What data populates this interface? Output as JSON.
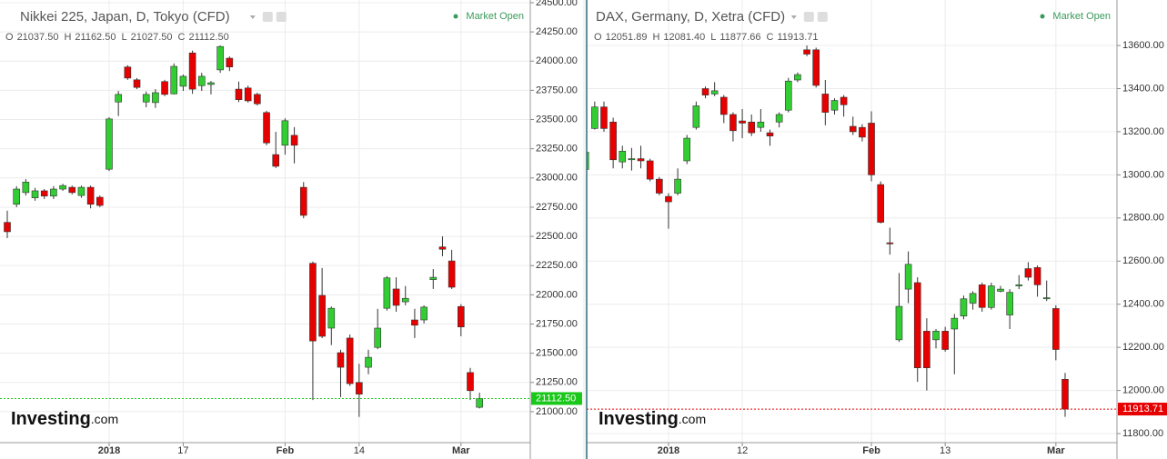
{
  "chart_data": [
    {
      "type": "candlestick",
      "title": "Nikkei 225, Japan, D, Tokyo (CFD)",
      "status": "Market Open",
      "header": {
        "labels": [
          "O",
          "H",
          "L",
          "C"
        ],
        "values": [
          21037.5,
          21162.5,
          21027.5,
          21112.5
        ],
        "value_labels": [
          "21037.50",
          "21162.50",
          "21027.50",
          "21112.50"
        ]
      },
      "x": [
        null,
        null,
        null,
        null,
        null,
        null,
        null,
        null,
        null,
        null,
        null,
        "2018",
        null,
        null,
        null,
        null,
        null,
        null,
        null,
        "17",
        null,
        null,
        null,
        null,
        null,
        null,
        null,
        null,
        null,
        null,
        "Feb",
        null,
        null,
        null,
        null,
        null,
        null,
        null,
        "14",
        null,
        null,
        null,
        null,
        null,
        null,
        null,
        null,
        null,
        null,
        "Mar",
        null,
        null
      ],
      "open": [
        22620,
        22775,
        22875,
        22830,
        22890,
        22845,
        22905,
        22920,
        22850,
        22920,
        22835,
        23075,
        23650,
        23950,
        23840,
        23650,
        23645,
        23825,
        23720,
        23785,
        24070,
        23790,
        23800,
        23925,
        24025,
        23760,
        23770,
        23715,
        23560,
        23200,
        23280,
        23365,
        22920,
        22270,
        21995,
        21715,
        21505,
        21630,
        21250,
        21380,
        21550,
        21885,
        22050,
        21940,
        21785,
        21785,
        22130,
        22410,
        22290,
        21900,
        21335,
        21037.5
      ],
      "high": [
        22720,
        22930,
        22990,
        22915,
        22905,
        22930,
        22950,
        22935,
        22935,
        22935,
        22850,
        23520,
        23745,
        23965,
        23855,
        23740,
        23760,
        23840,
        23980,
        23885,
        24090,
        23900,
        23830,
        24135,
        24040,
        23825,
        23790,
        23730,
        23575,
        23395,
        23510,
        23435,
        22965,
        22285,
        22230,
        21900,
        21530,
        21660,
        21410,
        21530,
        21880,
        22160,
        22150,
        22075,
        21880,
        21910,
        22220,
        22500,
        22385,
        21920,
        21375,
        21162.5
      ],
      "low": [
        22485,
        22750,
        22850,
        22805,
        22820,
        22820,
        22890,
        22860,
        22830,
        22740,
        22750,
        23060,
        23530,
        23840,
        23760,
        23605,
        23600,
        23700,
        23715,
        23745,
        23720,
        23745,
        23715,
        23900,
        23915,
        23650,
        23645,
        23620,
        23280,
        23085,
        23200,
        23125,
        22655,
        21100,
        21630,
        21570,
        21125,
        21220,
        20955,
        21320,
        21535,
        21865,
        21855,
        21910,
        21630,
        21755,
        22050,
        22330,
        22050,
        21645,
        21100,
        21027.5
      ],
      "close": [
        22540,
        22905,
        22965,
        22890,
        22845,
        22905,
        22935,
        22875,
        22920,
        22775,
        22765,
        23505,
        23715,
        23855,
        23775,
        23715,
        23730,
        23715,
        23955,
        23870,
        23760,
        23870,
        23815,
        24125,
        23950,
        23670,
        23660,
        23635,
        23300,
        23100,
        23490,
        23280,
        22680,
        21605,
        21645,
        21885,
        21380,
        21240,
        21150,
        21465,
        21715,
        22145,
        21910,
        21970,
        21740,
        21895,
        22150,
        22390,
        22065,
        21725,
        21180,
        21112.5
      ],
      "up_color": "#32cd32",
      "down_color": "#e60000",
      "last_color": "#19c819",
      "ylim": [
        20735,
        24523
      ],
      "yticks": [
        {
          "value": 21000,
          "label": "21000.00"
        },
        {
          "value": 21250,
          "label": "21250.00"
        },
        {
          "value": 21500,
          "label": "21500.00"
        },
        {
          "value": 21750,
          "label": "21750.00"
        },
        {
          "value": 22000,
          "label": "22000.00"
        },
        {
          "value": 22250,
          "label": "22250.00"
        },
        {
          "value": 22500,
          "label": "22500.00"
        },
        {
          "value": 22750,
          "label": "22750.00"
        },
        {
          "value": 23000,
          "label": "23000.00"
        },
        {
          "value": 23250,
          "label": "23250.00"
        },
        {
          "value": 23500,
          "label": "23500.00"
        },
        {
          "value": 23750,
          "label": "23750.00"
        },
        {
          "value": 24000,
          "label": "24000.00"
        },
        {
          "value": 24250,
          "label": "24250.00"
        },
        {
          "value": 24500,
          "label": "24500.00"
        }
      ],
      "last_price": {
        "value": 21112.5,
        "label": "21112.50"
      },
      "watermark": [
        "Investing",
        ".com"
      ],
      "grid": true
    },
    {
      "type": "candlestick",
      "title": "DAX, Germany, D, Xetra (CFD)",
      "status": "Market Open",
      "header": {
        "labels": [
          "O",
          "H",
          "L",
          "C"
        ],
        "values": [
          12051.89,
          12081.4,
          11877.66,
          11913.71
        ],
        "value_labels": [
          "12051.89",
          "12081.40",
          "11877.66",
          "11913.71"
        ]
      },
      "x": [
        null,
        null,
        null,
        null,
        null,
        null,
        null,
        null,
        null,
        "2018",
        null,
        null,
        null,
        null,
        null,
        null,
        null,
        "12",
        null,
        null,
        null,
        null,
        null,
        null,
        null,
        null,
        null,
        null,
        null,
        null,
        null,
        "Feb",
        null,
        null,
        null,
        null,
        null,
        null,
        null,
        "13",
        null,
        null,
        null,
        null,
        null,
        null,
        null,
        null,
        null,
        null,
        null,
        "Mar",
        null
      ],
      "open": [
        13025,
        13215,
        13315,
        13245,
        13060,
        13070,
        13075,
        13065,
        12980,
        12900,
        12915,
        13065,
        13220,
        13400,
        13375,
        13360,
        13280,
        13250,
        13245,
        13220,
        13195,
        13245,
        13300,
        13440,
        13580,
        13580,
        13375,
        13300,
        13360,
        13225,
        13220,
        13240,
        12955,
        12685,
        12235,
        12470,
        12500,
        12275,
        12235,
        12275,
        12285,
        12345,
        12405,
        12490,
        12385,
        12460,
        12350,
        12485,
        12565,
        12570,
        12425,
        12380,
        12051.89
      ],
      "high": [
        13115,
        13340,
        13340,
        13265,
        13135,
        13125,
        13135,
        13075,
        12990,
        12915,
        13030,
        13185,
        13340,
        13410,
        13430,
        13370,
        13290,
        13305,
        13280,
        13305,
        13210,
        13290,
        13450,
        13475,
        13600,
        13590,
        13440,
        13355,
        13370,
        13270,
        13235,
        13295,
        12970,
        12755,
        12545,
        12645,
        12525,
        12335,
        12285,
        12295,
        12355,
        12440,
        12460,
        12500,
        12500,
        12485,
        12470,
        12535,
        12595,
        12580,
        12510,
        12395,
        12081.4
      ],
      "low": [
        13020,
        13210,
        13200,
        13030,
        13030,
        13020,
        13030,
        12970,
        12905,
        12750,
        12905,
        13050,
        13210,
        13355,
        13365,
        13240,
        13155,
        13170,
        13180,
        13200,
        13135,
        13220,
        13290,
        13430,
        13550,
        13405,
        13230,
        13280,
        13270,
        13185,
        13155,
        12970,
        12775,
        12630,
        12225,
        12405,
        12040,
        12000,
        12195,
        12180,
        12075,
        12330,
        12375,
        12365,
        12375,
        12455,
        12285,
        12470,
        12510,
        12435,
        12415,
        12140,
        11877.66
      ],
      "close": [
        13105,
        13315,
        13215,
        13070,
        13110,
        13075,
        13065,
        12980,
        12915,
        12875,
        12980,
        13170,
        13320,
        13370,
        13390,
        13280,
        13205,
        13240,
        13195,
        13245,
        13180,
        13280,
        13435,
        13465,
        13560,
        13415,
        13290,
        13345,
        13325,
        13200,
        13175,
        13000,
        12780,
        12680,
        12390,
        12585,
        12105,
        12105,
        12275,
        12190,
        12335,
        12425,
        12450,
        12385,
        12485,
        12470,
        12455,
        12490,
        12525,
        12490,
        12430,
        12190,
        11913.71
      ],
      "up_color": "#32cd32",
      "down_color": "#e60000",
      "last_color": "#e60000",
      "ylim": [
        11758,
        13811
      ],
      "yticks": [
        {
          "value": 11800,
          "label": "11800.00"
        },
        {
          "value": 12000,
          "label": "12000.00"
        },
        {
          "value": 12200,
          "label": "12200.00"
        },
        {
          "value": 12400,
          "label": "12400.00"
        },
        {
          "value": 12600,
          "label": "12600.00"
        },
        {
          "value": 12800,
          "label": "12800.00"
        },
        {
          "value": 13000,
          "label": "13000.00"
        },
        {
          "value": 13200,
          "label": "13200.00"
        },
        {
          "value": 13400,
          "label": "13400.00"
        },
        {
          "value": 13600,
          "label": "13600.00"
        }
      ],
      "last_price": {
        "value": 11913.71,
        "label": "11913.71"
      },
      "watermark": [
        "Investing",
        ".com"
      ],
      "grid": true
    }
  ]
}
